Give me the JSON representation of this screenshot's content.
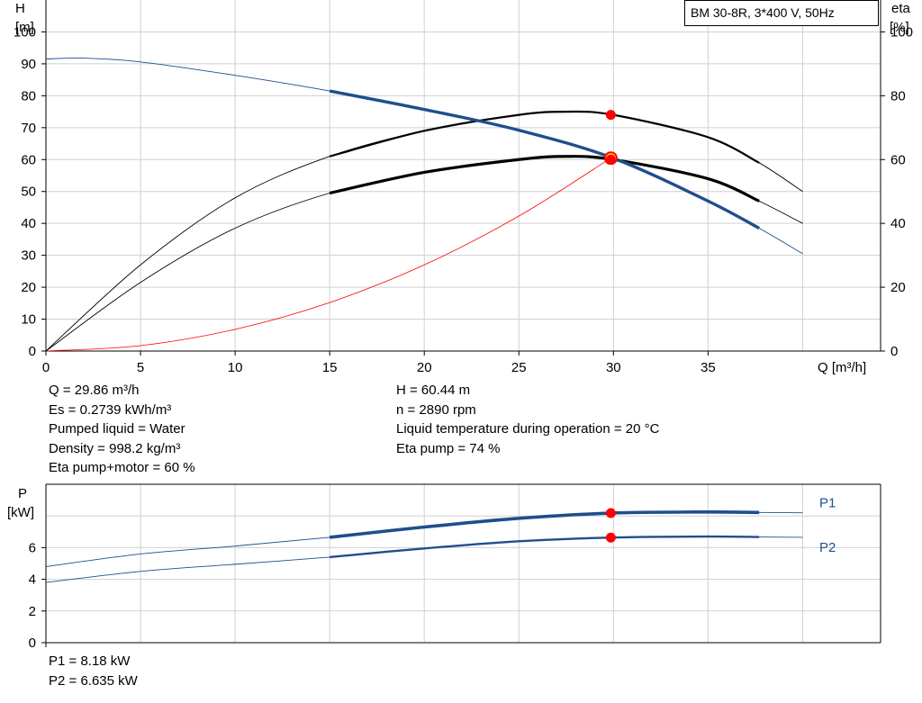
{
  "chart_data": [
    {
      "type": "line",
      "title": "BM 30-8R, 3*400 V, 50Hz",
      "xlabel": "Q [m³/h]",
      "ylabel": [
        "H",
        "[m]"
      ],
      "ylabel_right": [
        "eta",
        "[%]"
      ],
      "xlim": [
        0,
        40
      ],
      "ylim": [
        0,
        110
      ],
      "ylim_right": [
        0,
        110
      ],
      "xticks": [
        0,
        5,
        10,
        15,
        20,
        25,
        30,
        35
      ],
      "yticks": [
        0,
        10,
        20,
        30,
        40,
        50,
        60,
        70,
        80,
        90,
        100
      ],
      "yticks_right": [
        0,
        20,
        40,
        60,
        80,
        100
      ],
      "grid": true,
      "operating_range": [
        15,
        37.7
      ],
      "series": [
        {
          "id": "head",
          "color": "#1f4e8c",
          "x": [
            0,
            2,
            5,
            10,
            15,
            20,
            25,
            30,
            35,
            37.7,
            40
          ],
          "y": [
            91.5,
            91.8,
            90.6,
            86.4,
            81.5,
            75.7,
            69.2,
            60.4,
            47.0,
            38.5,
            30.5
          ]
        },
        {
          "id": "eta-pump",
          "axis": "right",
          "color": "#000000",
          "x": [
            0,
            5,
            10,
            15,
            20,
            25,
            27.5,
            30,
            35,
            37.7,
            40
          ],
          "y": [
            0,
            27,
            48,
            61,
            69,
            74,
            75,
            74,
            67,
            59,
            50
          ]
        },
        {
          "id": "eta-pump-motor",
          "axis": "right",
          "color": "#000000",
          "x": [
            0,
            5,
            10,
            15,
            20,
            25,
            27.5,
            30,
            35,
            37.7,
            40
          ],
          "y": [
            0,
            21.5,
            38.5,
            49.5,
            56,
            60,
            61,
            60,
            54,
            47,
            40
          ]
        },
        {
          "id": "system-curve",
          "color": "#ff0000",
          "x": [
            0,
            5,
            10,
            15,
            20,
            25,
            29.86
          ],
          "y": [
            0,
            1.7,
            6.8,
            15.2,
            27.0,
            42.3,
            60.44
          ]
        }
      ],
      "operating_points": [
        {
          "series": "head",
          "x": 29.86,
          "y": 60.44,
          "style": "duty"
        },
        {
          "series": "eta-pump",
          "x": 29.86,
          "y": 74
        },
        {
          "series": "eta-pump-motor",
          "x": 29.86,
          "y": 60
        }
      ]
    },
    {
      "type": "line",
      "ylabel": [
        "P",
        "[kW]"
      ],
      "xlim": [
        0,
        40
      ],
      "ylim": [
        0,
        10
      ],
      "yticks": [
        0,
        2,
        4,
        6
      ],
      "grid": true,
      "operating_range": [
        15,
        37.7
      ],
      "series": [
        {
          "id": "P1",
          "name": "P1",
          "color": "#1f4e8c",
          "x": [
            0,
            5,
            10,
            15,
            20,
            25,
            29.86,
            35,
            37.7,
            40
          ],
          "y": [
            4.8,
            5.6,
            6.1,
            6.65,
            7.3,
            7.85,
            8.18,
            8.25,
            8.22,
            8.2
          ]
        },
        {
          "id": "P2",
          "name": "P2",
          "color": "#1f4e8c",
          "x": [
            0,
            5,
            10,
            15,
            20,
            25,
            29.86,
            35,
            37.7,
            40
          ],
          "y": [
            3.8,
            4.5,
            4.95,
            5.4,
            5.95,
            6.4,
            6.635,
            6.7,
            6.67,
            6.65
          ]
        }
      ],
      "operating_points": [
        {
          "series": "P1",
          "x": 29.86,
          "y": 8.18
        },
        {
          "series": "P2",
          "x": 29.86,
          "y": 6.635
        }
      ]
    }
  ],
  "info_top_left": [
    "Q = 29.86 m³/h",
    "Es = 0.2739 kWh/m³",
    "Pumped liquid = Water",
    "Density = 998.2 kg/m³",
    "Eta pump+motor = 60 %"
  ],
  "info_top_right": [
    "H = 60.44 m",
    "n = 2890 rpm",
    "Liquid temperature during operation = 20 °C",
    "Eta pump = 74 %"
  ],
  "info_bottom": [
    "P1 = 8.18 kW",
    "P2 = 6.635 kW"
  ]
}
